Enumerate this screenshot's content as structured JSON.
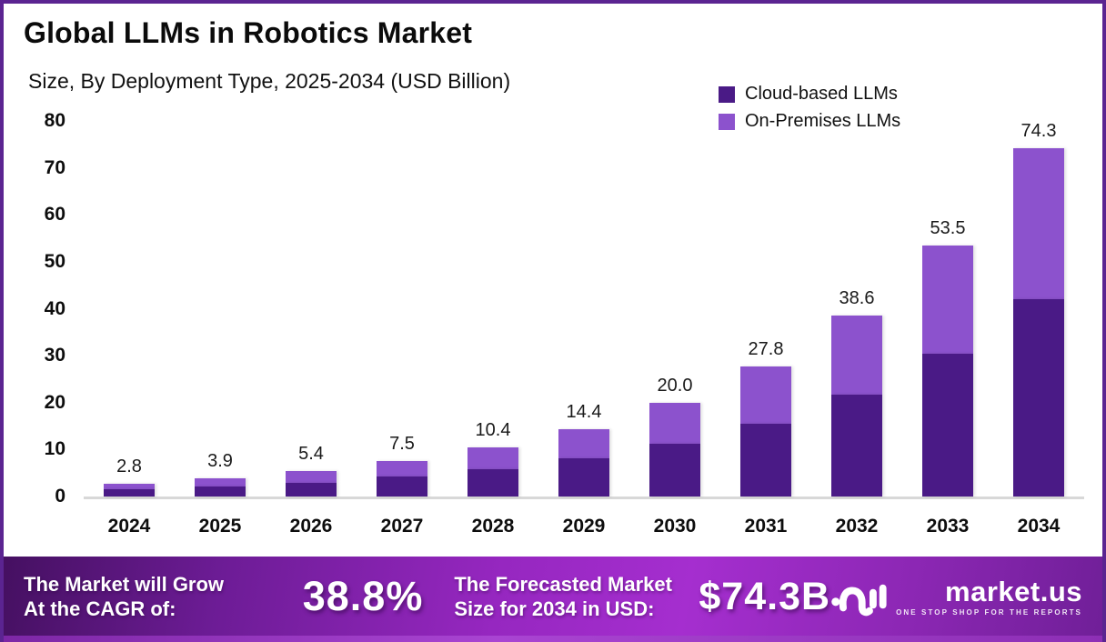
{
  "header": {
    "title": "Global LLMs in Robotics Market",
    "subtitle": "Size, By Deployment Type, 2025-2034 (USD Billion)"
  },
  "legend": [
    {
      "label": "Cloud-based LLMs",
      "color": "#4a1a86"
    },
    {
      "label": "On-Premises LLMs",
      "color": "#8c52cd"
    }
  ],
  "chart_data": {
    "type": "bar",
    "stacked": true,
    "title": "Global LLMs in Robotics Market Size, By Deployment Type, 2025-2034 (USD Billion)",
    "categories": [
      "2024",
      "2025",
      "2026",
      "2027",
      "2028",
      "2029",
      "2030",
      "2031",
      "2032",
      "2033",
      "2034"
    ],
    "series": [
      {
        "name": "Cloud-based LLMs",
        "color": "#4a1a86",
        "values": [
          1.6,
          2.2,
          3.0,
          4.2,
          5.8,
          8.1,
          11.2,
          15.5,
          21.7,
          30.4,
          42.0
        ]
      },
      {
        "name": "On-Premises LLMs",
        "color": "#8c52cd",
        "values": [
          1.2,
          1.7,
          2.4,
          3.3,
          4.6,
          6.3,
          8.8,
          12.3,
          16.9,
          23.1,
          32.3
        ]
      }
    ],
    "totals": [
      2.8,
      3.9,
      5.4,
      7.5,
      10.4,
      14.4,
      20.0,
      27.8,
      38.6,
      53.5,
      74.3
    ],
    "total_labels": [
      "2.8",
      "3.9",
      "5.4",
      "7.5",
      "10.4",
      "14.4",
      "20.0",
      "27.8",
      "38.6",
      "53.5",
      "74.3"
    ],
    "ylim": [
      0,
      80
    ],
    "yticks": [
      0,
      10,
      20,
      30,
      40,
      50,
      60,
      70,
      80
    ],
    "xlabel": "",
    "ylabel": "",
    "grid": false,
    "legend_position": "top-right"
  },
  "footer": {
    "cagr_label_line1": "The Market will Grow",
    "cagr_label_line2": "At the CAGR of:",
    "cagr_value": "38.8%",
    "forecast_label_line1": "The Forecasted Market",
    "forecast_label_line2": "Size for 2034 in USD:",
    "forecast_value": "$74.3B",
    "brand": {
      "name": "market.us",
      "tagline": "ONE STOP SHOP FOR THE REPORTS"
    }
  },
  "colors": {
    "frame_border": "#5b2491",
    "cloud_series": "#4a1a86",
    "onprem_series": "#8c52cd",
    "axis_line": "#d8d8d8",
    "banner_bright": "#a52ecf",
    "banner_dark": "#451061"
  }
}
